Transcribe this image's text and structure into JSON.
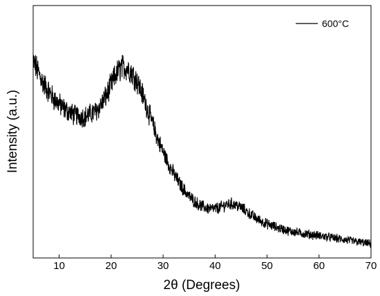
{
  "chart_data": {
    "type": "line",
    "title": "",
    "xlabel": "2θ (Degrees)",
    "ylabel": "Intensity (a.u.)",
    "xlim": [
      5,
      70
    ],
    "ylim": [
      0,
      100
    ],
    "xticks": [
      10,
      20,
      30,
      40,
      50,
      60,
      70
    ],
    "xtick_labels": [
      "10",
      "20",
      "30",
      "40",
      "50",
      "60",
      "70"
    ],
    "yticks": [],
    "grid": false,
    "legend": {
      "position": "top-right"
    },
    "colors": {
      "line": "#000000",
      "axis": "#000000"
    },
    "series": [
      {
        "name": "600°C",
        "x": [
          5,
          7,
          9,
          11,
          13,
          15,
          17,
          18,
          19,
          20,
          21,
          22,
          23,
          24,
          25,
          26,
          27,
          28,
          29,
          30,
          31,
          32,
          33,
          34,
          35,
          36,
          37,
          38,
          39,
          40,
          41,
          42,
          43,
          44,
          45,
          46,
          47,
          48,
          50,
          52,
          54,
          56,
          58,
          60,
          62,
          64,
          66,
          68,
          70
        ],
        "y": [
          78,
          69,
          63,
          59,
          56.5,
          56,
          58,
          60.5,
          64,
          68.5,
          73,
          75.5,
          75.5,
          73.5,
          70,
          65,
          59,
          53,
          47,
          42,
          37.5,
          33.5,
          30,
          27,
          24.5,
          22.5,
          21,
          20,
          19.5,
          19.5,
          20,
          21,
          21.5,
          21,
          20,
          18.5,
          17,
          15.5,
          13.5,
          12,
          10.8,
          10,
          9.4,
          8.8,
          8.2,
          7.5,
          6.8,
          6.2,
          5.5
        ]
      }
    ]
  }
}
